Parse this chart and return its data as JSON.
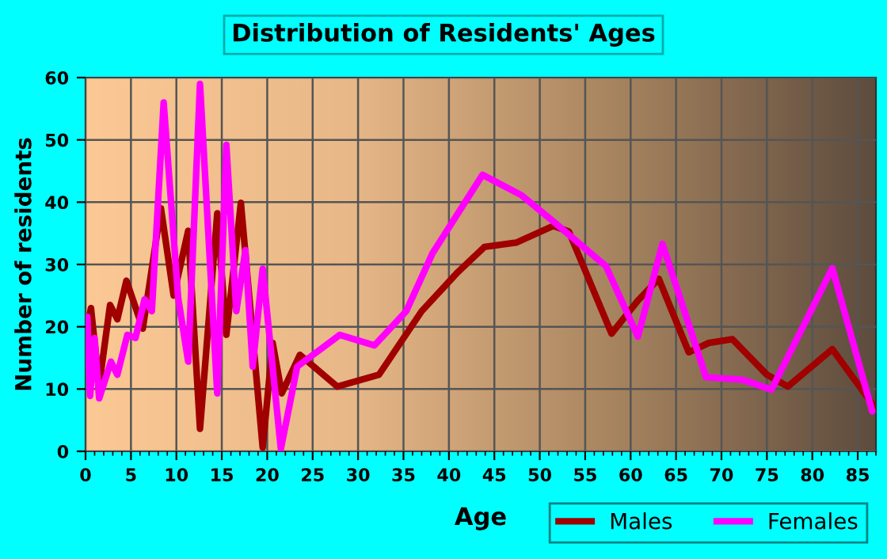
{
  "chart_data": {
    "type": "line",
    "title": "Distribution of Residents' Ages",
    "xlabel": "Age",
    "ylabel": "Number of residents",
    "xlim": [
      0,
      87
    ],
    "xticks": [
      0,
      5,
      10,
      15,
      20,
      25,
      30,
      35,
      40,
      45,
      50,
      55,
      60,
      65,
      70,
      75,
      80,
      85
    ],
    "ylim": [
      0,
      60
    ],
    "yticks": [
      0,
      10,
      20,
      30,
      40,
      50,
      60
    ],
    "grid": true,
    "legend": "bottom right",
    "marker": "none",
    "line_style": "solid",
    "series": [
      {
        "name": "Males",
        "color": "#a00000",
        "x": [
          0.2,
          0.6,
          1.5,
          2.7,
          3.5,
          4.5,
          6.3,
          8.3,
          9.7,
          11.3,
          12.6,
          14.5,
          15.5,
          17.1,
          19.5,
          20.6,
          21.6,
          23.6,
          27.7,
          32.3,
          37,
          41,
          43.9,
          47.4,
          51.5,
          53.2,
          57.9,
          60.8,
          63.1,
          66.4,
          68.6,
          71.2,
          75,
          77.3,
          82.2,
          86.8
        ],
        "values": [
          20,
          23,
          10.6,
          23.5,
          21.2,
          27.4,
          19.7,
          39,
          25,
          35.4,
          3.6,
          38.2,
          18.7,
          39.9,
          0.6,
          17.4,
          9.3,
          15.5,
          10.4,
          12.3,
          22.5,
          28.8,
          32.8,
          33.5,
          36.2,
          35.3,
          18.9,
          24.2,
          27.7,
          15.9,
          17.4,
          18,
          12.3,
          10.4,
          16.4,
          7.2
        ]
      },
      {
        "name": "Females",
        "color": "#ff00ff",
        "x": [
          0.2,
          0.5,
          1,
          1.5,
          2.8,
          3.5,
          4.6,
          5.5,
          6.5,
          7.3,
          8.6,
          10.2,
          11.3,
          12.6,
          14.5,
          15.5,
          16.6,
          17.6,
          18.4,
          19.5,
          21.5,
          23.3,
          28,
          31.8,
          35.3,
          38.2,
          43.7,
          48,
          51.5,
          57.3,
          60.8,
          63.5,
          68.3,
          72.3,
          75.5,
          82.2,
          86.6
        ],
        "values": [
          21.6,
          8.9,
          18.2,
          8.5,
          14.4,
          12.3,
          18.7,
          18.2,
          24.4,
          22.5,
          56,
          24.6,
          14.4,
          59,
          9.3,
          49.2,
          22.5,
          32.3,
          13.6,
          29.3,
          0.4,
          13.6,
          18.7,
          17,
          22.5,
          31.8,
          44.4,
          41.1,
          36.9,
          29.7,
          18.4,
          33.3,
          11.9,
          11.5,
          9.9,
          29.4,
          6.4
        ]
      }
    ]
  }
}
